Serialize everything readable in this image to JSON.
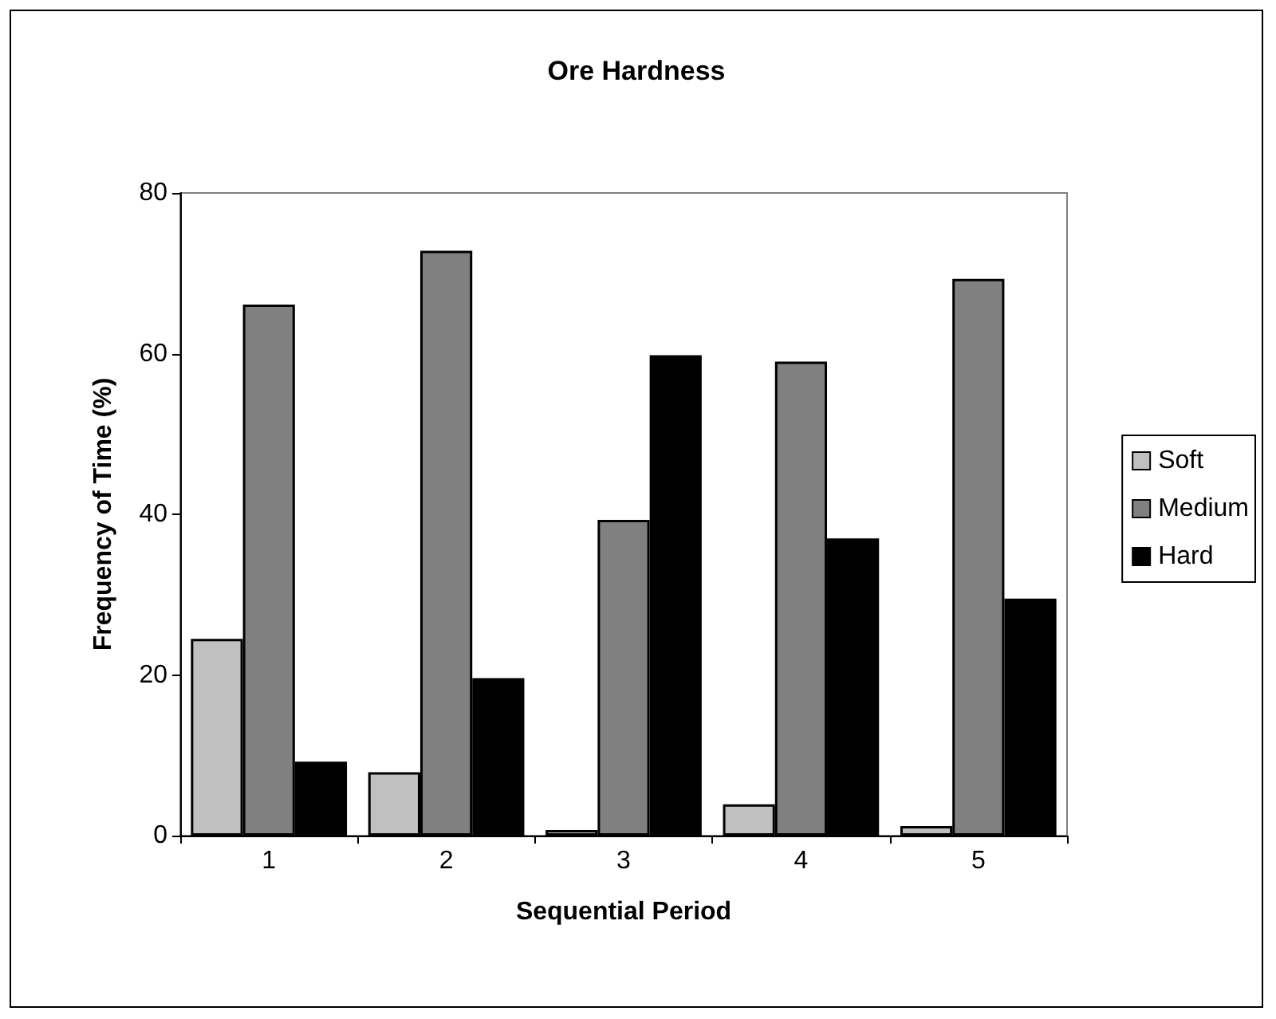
{
  "chart_data": {
    "type": "bar",
    "title": "Ore Hardness",
    "xlabel": "Sequential Period",
    "ylabel": "Frequency of Time (%)",
    "categories": [
      "1",
      "2",
      "3",
      "4",
      "5"
    ],
    "series": [
      {
        "name": "Soft",
        "color": "#c0c0c0",
        "values": [
          24.5,
          7.9,
          0.7,
          3.9,
          1.2
        ]
      },
      {
        "name": "Medium",
        "color": "#808080",
        "values": [
          66.1,
          72.8,
          39.3,
          59.0,
          69.3
        ]
      },
      {
        "name": "Hard",
        "color": "#000000",
        "values": [
          9.2,
          19.6,
          59.8,
          37.0,
          29.5
        ]
      }
    ],
    "ylim": [
      0,
      80
    ],
    "yticks": [
      0,
      20,
      40,
      60,
      80
    ],
    "grid": false,
    "legend": "right"
  }
}
